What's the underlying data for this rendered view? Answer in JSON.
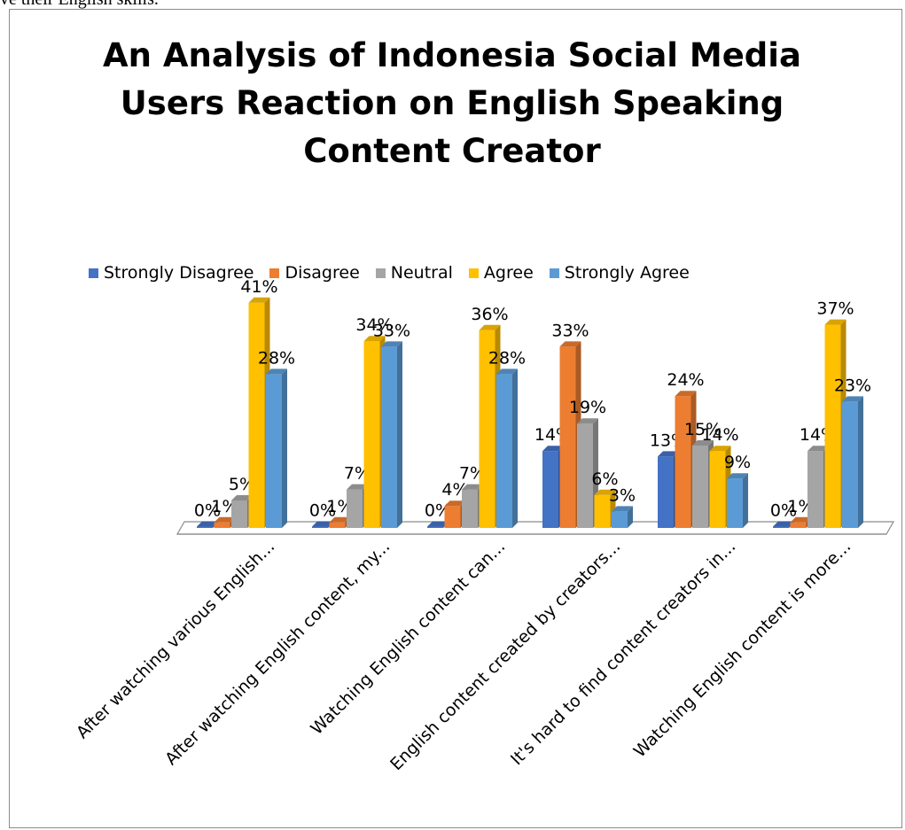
{
  "page": {
    "caption": "ve their English skills."
  },
  "chart_data": {
    "type": "bar",
    "title": [
      "An Analysis of Indonesia Social Media",
      "Users Reaction on English Speaking",
      "Content Creator"
    ],
    "xlabel": "",
    "ylabel": "",
    "ylim": [
      0,
      45
    ],
    "grid": false,
    "legend_position": "top",
    "categories": [
      "After watching various English...",
      "After watching English content, my...",
      "Watching English content can...",
      "English content created by creators...",
      "It's hard to find content creators in...",
      "Watching English content is more..."
    ],
    "series": [
      {
        "name": "Strongly Disagree",
        "color": "#4472C4",
        "values": [
          0,
          0,
          0,
          14,
          13,
          0
        ],
        "labels": [
          "0%",
          "0%",
          "0%",
          "14%",
          "13%",
          "0%"
        ]
      },
      {
        "name": "Disagree",
        "color": "#ED7D31",
        "values": [
          1,
          1,
          4,
          33,
          24,
          1
        ],
        "labels": [
          "1%",
          "1%",
          "4%",
          "33%",
          "24%",
          "1%"
        ]
      },
      {
        "name": "Neutral",
        "color": "#A5A5A5",
        "values": [
          5,
          7,
          7,
          19,
          15,
          14
        ],
        "labels": [
          "5%",
          "7%",
          "7%",
          "19%",
          "15%",
          "14%"
        ]
      },
      {
        "name": "Agree",
        "color": "#FFC000",
        "values": [
          41,
          34,
          36,
          6,
          14,
          37
        ],
        "labels": [
          "41%",
          "34%",
          "36%",
          "6%",
          "14%",
          "37%"
        ]
      },
      {
        "name": "Strongly Agree",
        "color": "#5B9BD5",
        "values": [
          28,
          33,
          28,
          3,
          9,
          23
        ],
        "labels": [
          "28%",
          "33%",
          "28%",
          "3%",
          "9%",
          "23%"
        ]
      }
    ]
  }
}
